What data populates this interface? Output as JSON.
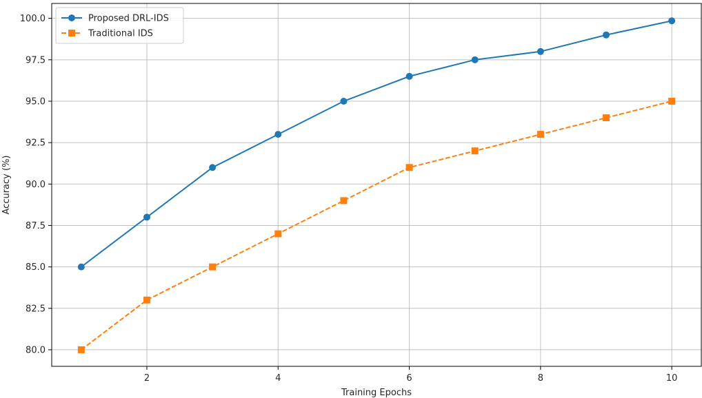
{
  "chart_data": {
    "type": "line",
    "title": "",
    "xlabel": "Training Epochs",
    "ylabel": "Accuracy (%)",
    "x": [
      1,
      2,
      3,
      4,
      5,
      6,
      7,
      8,
      9,
      10
    ],
    "xlim": [
      0.55,
      10.45
    ],
    "ylim": [
      79.0,
      100.9
    ],
    "xticks": [
      2,
      4,
      6,
      8,
      10
    ],
    "yticks": [
      80.0,
      82.5,
      85.0,
      87.5,
      90.0,
      92.5,
      95.0,
      97.5,
      100.0
    ],
    "grid": true,
    "legend_position": "top-left",
    "series": [
      {
        "name": "Proposed DRL-IDS",
        "values": [
          85.0,
          88.0,
          91.0,
          93.0,
          95.0,
          96.5,
          97.5,
          98.0,
          99.0,
          99.85
        ],
        "color": "#1f77b4",
        "linestyle": "solid",
        "marker": "circle"
      },
      {
        "name": "Traditional IDS",
        "values": [
          80.0,
          83.0,
          85.0,
          87.0,
          89.0,
          91.0,
          92.0,
          93.0,
          94.0,
          95.0
        ],
        "color": "#ff7f0e",
        "linestyle": "dashed",
        "marker": "square"
      }
    ]
  }
}
